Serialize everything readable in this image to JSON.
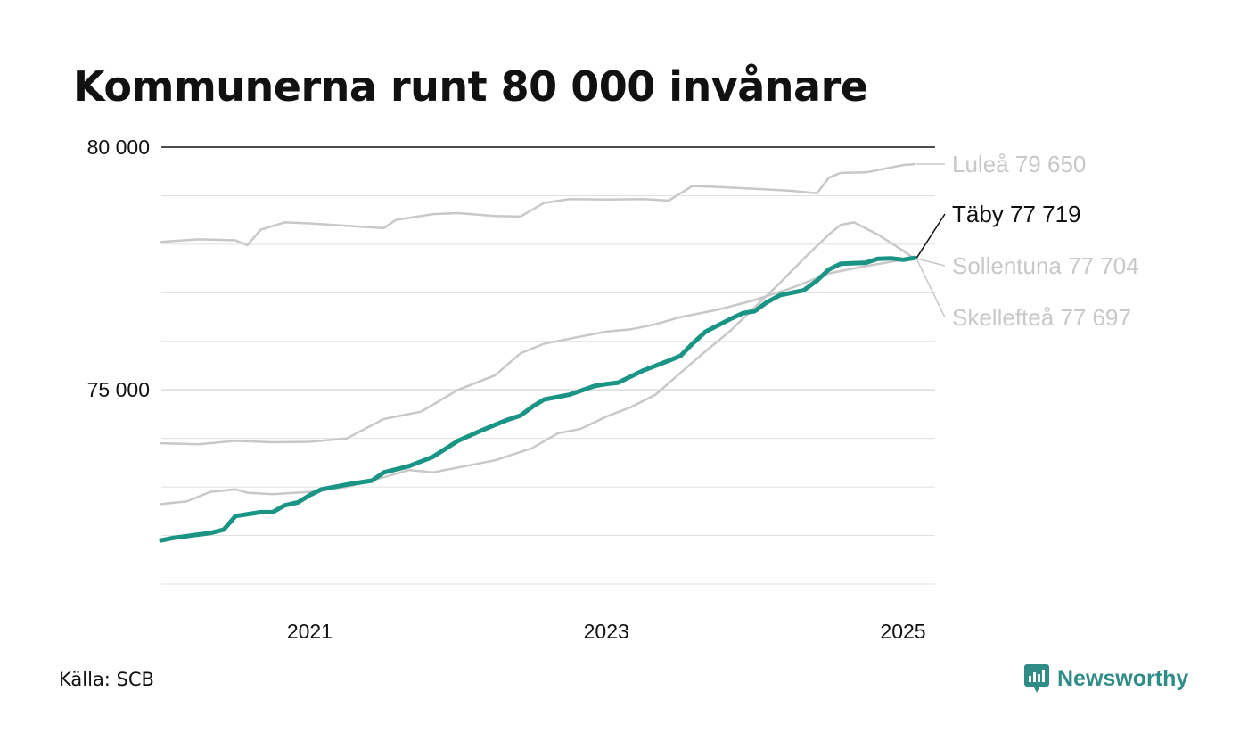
{
  "title": "Kommunerna runt 80 000 invånare",
  "source": "Källa: SCB",
  "brand": {
    "name": "Newsworthy",
    "icon": "newsworthy-logo-icon",
    "color": "#2f8c87"
  },
  "colors": {
    "highlight": "#1a9585",
    "muted": "#c8c8c8",
    "grid": "#e0e0e0",
    "zero_line": "#111111"
  },
  "chart_data": {
    "type": "line",
    "title": "Kommunerna runt 80 000 invånare",
    "xlabel": "",
    "ylabel": "",
    "xlim": [
      2020.0,
      2025.25
    ],
    "ylim": [
      71000,
      80000
    ],
    "y_ticks": [
      {
        "value": 75000,
        "label": "75 000"
      },
      {
        "value": 80000,
        "label": "80 000"
      }
    ],
    "y_gridlines": [
      71000,
      72000,
      73000,
      74000,
      75000,
      76000,
      77000,
      78000,
      79000,
      80000
    ],
    "x_ticks": [
      {
        "value": 2021,
        "label": "2021"
      },
      {
        "value": 2023,
        "label": "2023"
      },
      {
        "value": 2025,
        "label": "2025"
      }
    ],
    "grid": true,
    "series": [
      {
        "name": "Luleå",
        "end_label": "Luleå 79 650",
        "highlight": false,
        "points": [
          [
            2020.0,
            78050
          ],
          [
            2020.25,
            78100
          ],
          [
            2020.5,
            78080
          ],
          [
            2020.58,
            77980
          ],
          [
            2020.67,
            78300
          ],
          [
            2020.83,
            78450
          ],
          [
            2021.0,
            78430
          ],
          [
            2021.25,
            78380
          ],
          [
            2021.5,
            78330
          ],
          [
            2021.58,
            78500
          ],
          [
            2021.83,
            78620
          ],
          [
            2022.0,
            78640
          ],
          [
            2022.25,
            78580
          ],
          [
            2022.42,
            78570
          ],
          [
            2022.58,
            78850
          ],
          [
            2022.75,
            78930
          ],
          [
            2023.0,
            78920
          ],
          [
            2023.25,
            78930
          ],
          [
            2023.42,
            78900
          ],
          [
            2023.58,
            79200
          ],
          [
            2023.75,
            79180
          ],
          [
            2024.0,
            79140
          ],
          [
            2024.25,
            79100
          ],
          [
            2024.42,
            79050
          ],
          [
            2024.5,
            79370
          ],
          [
            2024.58,
            79470
          ],
          [
            2024.75,
            79480
          ],
          [
            2025.0,
            79630
          ],
          [
            2025.08,
            79650
          ]
        ]
      },
      {
        "name": "Sollentuna",
        "end_label": "Sollentuna 77 704",
        "highlight": false,
        "points": [
          [
            2020.0,
            73900
          ],
          [
            2020.25,
            73880
          ],
          [
            2020.5,
            73950
          ],
          [
            2020.75,
            73920
          ],
          [
            2021.0,
            73930
          ],
          [
            2021.25,
            74000
          ],
          [
            2021.5,
            74400
          ],
          [
            2021.75,
            74550
          ],
          [
            2022.0,
            75000
          ],
          [
            2022.25,
            75300
          ],
          [
            2022.42,
            75750
          ],
          [
            2022.58,
            75950
          ],
          [
            2022.83,
            76100
          ],
          [
            2023.0,
            76200
          ],
          [
            2023.17,
            76250
          ],
          [
            2023.33,
            76350
          ],
          [
            2023.5,
            76500
          ],
          [
            2023.75,
            76650
          ],
          [
            2024.0,
            76850
          ],
          [
            2024.25,
            77100
          ],
          [
            2024.5,
            77400
          ],
          [
            2024.75,
            77550
          ],
          [
            2025.0,
            77680
          ],
          [
            2025.08,
            77704
          ]
        ]
      },
      {
        "name": "Skellefteå",
        "end_label": "Skellefteå 77 697",
        "highlight": false,
        "points": [
          [
            2020.0,
            72650
          ],
          [
            2020.17,
            72700
          ],
          [
            2020.33,
            72900
          ],
          [
            2020.5,
            72950
          ],
          [
            2020.58,
            72880
          ],
          [
            2020.75,
            72850
          ],
          [
            2021.0,
            72900
          ],
          [
            2021.25,
            73000
          ],
          [
            2021.5,
            73200
          ],
          [
            2021.67,
            73350
          ],
          [
            2021.83,
            73300
          ],
          [
            2022.0,
            73400
          ],
          [
            2022.25,
            73550
          ],
          [
            2022.5,
            73800
          ],
          [
            2022.67,
            74100
          ],
          [
            2022.83,
            74200
          ],
          [
            2023.0,
            74450
          ],
          [
            2023.17,
            74650
          ],
          [
            2023.33,
            74900
          ],
          [
            2023.5,
            75350
          ],
          [
            2023.67,
            75800
          ],
          [
            2023.83,
            76200
          ],
          [
            2024.0,
            76700
          ],
          [
            2024.17,
            77200
          ],
          [
            2024.33,
            77700
          ],
          [
            2024.5,
            78200
          ],
          [
            2024.58,
            78400
          ],
          [
            2024.67,
            78450
          ],
          [
            2024.83,
            78200
          ],
          [
            2025.0,
            77870
          ],
          [
            2025.08,
            77697
          ]
        ]
      },
      {
        "name": "Täby",
        "end_label": "Täby 77 719",
        "highlight": true,
        "points": [
          [
            2020.0,
            71900
          ],
          [
            2020.08,
            71950
          ],
          [
            2020.25,
            72020
          ],
          [
            2020.33,
            72050
          ],
          [
            2020.42,
            72120
          ],
          [
            2020.5,
            72400
          ],
          [
            2020.67,
            72480
          ],
          [
            2020.75,
            72480
          ],
          [
            2020.83,
            72620
          ],
          [
            2020.92,
            72680
          ],
          [
            2021.0,
            72830
          ],
          [
            2021.08,
            72950
          ],
          [
            2021.25,
            73050
          ],
          [
            2021.42,
            73130
          ],
          [
            2021.5,
            73300
          ],
          [
            2021.67,
            73430
          ],
          [
            2021.83,
            73620
          ],
          [
            2022.0,
            73950
          ],
          [
            2022.17,
            74180
          ],
          [
            2022.33,
            74380
          ],
          [
            2022.42,
            74470
          ],
          [
            2022.5,
            74650
          ],
          [
            2022.58,
            74800
          ],
          [
            2022.75,
            74900
          ],
          [
            2022.92,
            75080
          ],
          [
            2023.0,
            75120
          ],
          [
            2023.08,
            75150
          ],
          [
            2023.25,
            75400
          ],
          [
            2023.42,
            75600
          ],
          [
            2023.5,
            75700
          ],
          [
            2023.58,
            75950
          ],
          [
            2023.67,
            76200
          ],
          [
            2023.83,
            76450
          ],
          [
            2023.92,
            76580
          ],
          [
            2024.0,
            76620
          ],
          [
            2024.08,
            76800
          ],
          [
            2024.17,
            76950
          ],
          [
            2024.33,
            77050
          ],
          [
            2024.42,
            77250
          ],
          [
            2024.5,
            77480
          ],
          [
            2024.58,
            77600
          ],
          [
            2024.75,
            77620
          ],
          [
            2024.83,
            77700
          ],
          [
            2024.92,
            77710
          ],
          [
            2025.0,
            77680
          ],
          [
            2025.08,
            77719
          ]
        ]
      }
    ]
  }
}
